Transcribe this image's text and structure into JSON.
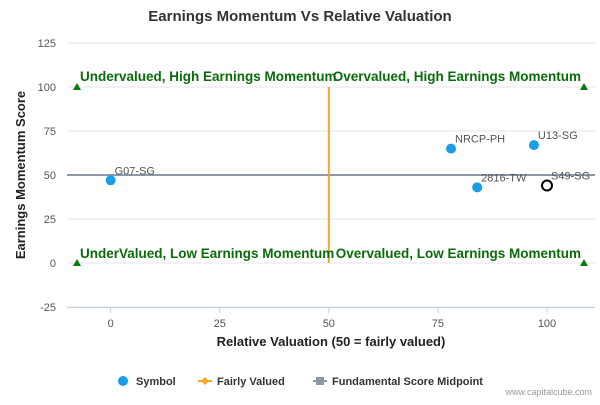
{
  "chart_data": {
    "type": "scatter",
    "title": "Earnings Momentum Vs Relative Valuation",
    "xlabel": "Relative Valuation (50 = fairly valued)",
    "ylabel": "Earnings Momentum Score",
    "xlim": [
      -10,
      111
    ],
    "ylim": [
      -25,
      125
    ],
    "x_ticks": [
      0,
      25,
      50,
      75,
      100
    ],
    "y_ticks": [
      -25,
      0,
      25,
      50,
      75,
      100,
      125
    ],
    "grid": "horizontal",
    "legend_position": "bottom",
    "series": [
      {
        "name": "Symbol",
        "color": "#1a9ee8",
        "points": [
          {
            "label": "G07-SG",
            "x": 0,
            "y": 47
          },
          {
            "label": "NRCP-PH",
            "x": 78,
            "y": 65
          },
          {
            "label": "U13-SG",
            "x": 97,
            "y": 67
          },
          {
            "label": "2816-TW",
            "x": 84,
            "y": 43
          }
        ]
      }
    ],
    "highlight_point": {
      "label": "S49-SG",
      "x": 100,
      "y": 44
    },
    "fairly_valued": {
      "name": "Fairly Valued",
      "x": 50,
      "y_range": [
        0,
        100
      ],
      "color": "#f5a623"
    },
    "midpoint": {
      "name": "Fundamental Score Midpoint",
      "y": 50,
      "x_range": [
        -10,
        111
      ],
      "color": "#8e98a8"
    },
    "quadrant_labels": {
      "top_left": "Undervalued, High Earnings Momentum",
      "top_right": "Overvalued, High Earnings Momentum",
      "bottom_left": "UnderValued, Low Earnings Momentum",
      "bottom_right": "Overvalued, Low Earnings Momentum",
      "color": "#0a6b0a"
    },
    "corner_markers": [
      {
        "x": -10,
        "y": 100
      },
      {
        "x": 111,
        "y": 100
      },
      {
        "x": -10,
        "y": 0
      },
      {
        "x": 111,
        "y": 0
      }
    ],
    "legend": [
      {
        "name": "Symbol",
        "icon": "circle-marker-icon",
        "color": "#1a9ee8"
      },
      {
        "name": "Fairly Valued",
        "icon": "diamond-line-icon",
        "color": "#f5a623"
      },
      {
        "name": "Fundamental Score Midpoint",
        "icon": "square-line-icon",
        "color": "#8e98a8"
      }
    ],
    "credit": "www.capitalcube.com"
  }
}
